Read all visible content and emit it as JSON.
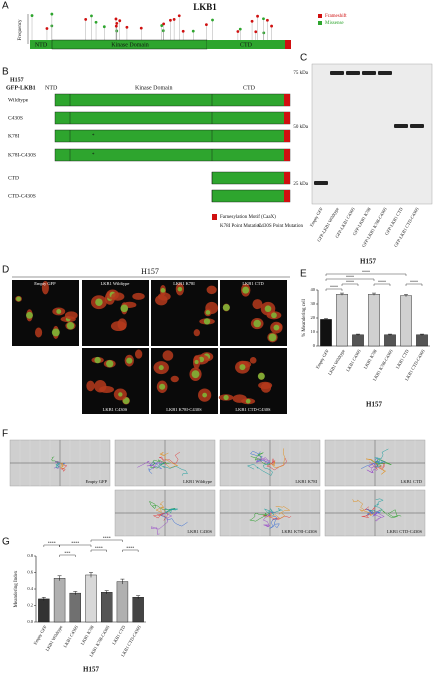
{
  "panel_labels": [
    "A",
    "B",
    "C",
    "D",
    "E",
    "F",
    "G"
  ],
  "panel_a": {
    "title": "LKB1",
    "y_label": "Frequency",
    "legend": [
      "Frameshift",
      "Missense"
    ],
    "domains": [
      "NTD",
      "Kinase Domain",
      "CTD"
    ]
  },
  "panel_b": {
    "cell_line": "H157",
    "construct": "GFP-LKB1",
    "domains": [
      "NTD",
      "Kinase Domain",
      "CTD"
    ],
    "rows": [
      "Wildtype",
      "C430S",
      "K78I",
      "K78I-C430S",
      "CTD",
      "CTD-C430S"
    ],
    "legend": [
      "Farnesylation Motif (CaaX)",
      "K78I Point Mutation",
      "C430S Point Mutation"
    ]
  },
  "panel_c": {
    "markers": [
      "75 kDa",
      "50 kDa",
      "25 kDa"
    ],
    "lanes": [
      "Empty GFP",
      "GFP-LKB1 Wildtype",
      "GFP-LKB1 C430S",
      "GFP-LKB1 K78I",
      "GFP-LKB1 K78I-C430S",
      "GFP-LKB1 CTD",
      "GFP-LKB1 CTD-C430S"
    ],
    "cell_line": "H157"
  },
  "panel_d": {
    "cell_line": "H157",
    "images": [
      "Empty GFP",
      "LKB1 Wildtype",
      "LKB1 K78I",
      "LKB1 CTD",
      "LKB1 C430S",
      "LKB1 K78I-C430S",
      "LKB1 CTD-C430S"
    ]
  },
  "panel_f": {
    "plots": [
      "Empty GFP",
      "LKB1 Wildtype",
      "LKB1 K78I",
      "LKB1 CTD",
      "LKB1 C430S",
      "LKB1 K78I-C430S",
      "LKB1 CTD-C430S"
    ]
  },
  "chart_data": [
    {
      "type": "bar",
      "y_label": "% Meandering cell",
      "x_label": "H157",
      "categories": [
        "Empty GFP",
        "LKB1 Wildtype",
        "LKB1 C430S",
        "LKB1 K78I",
        "LKB1 K78I-C430S",
        "LKB1 CTD",
        "LKB1 CTD-C430S"
      ],
      "values": [
        19,
        37,
        8,
        37,
        8,
        36,
        8
      ],
      "errors": [
        0.6,
        0.8,
        0.5,
        0.8,
        0.5,
        0.8,
        0.5
      ],
      "colors": [
        "#111111",
        "#d0d0d0",
        "#555555",
        "#d0d0d0",
        "#555555",
        "#d0d0d0",
        "#555555"
      ],
      "ylim": [
        0,
        40
      ],
      "yticks": [
        0,
        10,
        20,
        30,
        40
      ],
      "annotations": [
        "****",
        "****",
        "****",
        "****",
        "****",
        "****"
      ]
    },
    {
      "type": "bar",
      "y_label": "Meandering Index",
      "x_label": "H157",
      "categories": [
        "Empty GFP",
        "LKB1 Wildtype",
        "LKB1 C430S",
        "LKB1 K78I",
        "LKB1 K78I-C430S",
        "LKB1 CTD",
        "LKB1 CTD-C430S"
      ],
      "values": [
        0.28,
        0.53,
        0.35,
        0.57,
        0.36,
        0.49,
        0.3
      ],
      "errors": [
        0.02,
        0.03,
        0.02,
        0.03,
        0.02,
        0.03,
        0.02
      ],
      "colors": [
        "#333333",
        "#b0b0b0",
        "#707070",
        "#d8d8d8",
        "#555555",
        "#b0b0b0",
        "#444444"
      ],
      "ylim": [
        0,
        0.8
      ],
      "yticks": [
        {
          "value": 0,
          "label": "0.0"
        },
        {
          "value": 0.2,
          "label": "0.2"
        },
        {
          "value": 0.4,
          "label": "0.4"
        },
        {
          "value": 0.6,
          "label": "0.6"
        },
        {
          "value": 0.8,
          "label": "0.8"
        }
      ],
      "annotations": [
        "****",
        "***",
        "****",
        "****",
        "****",
        "****"
      ]
    }
  ]
}
